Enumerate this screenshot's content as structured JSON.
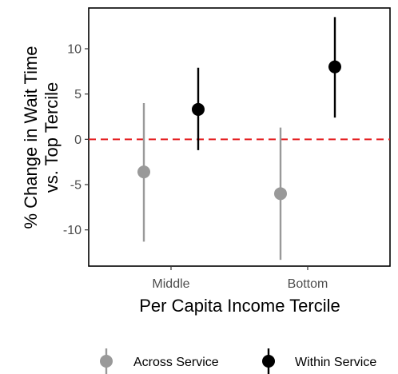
{
  "chart_data": {
    "type": "scatter",
    "subtype": "point-range",
    "title": "",
    "xlabel": "Per Capita Income Tercile",
    "ylabel_line1": "% Change in Wait Time",
    "ylabel_line2": "vs. Top Tercile",
    "categories": [
      "Middle",
      "Bottom"
    ],
    "ylim": [
      -14,
      14.5
    ],
    "yticks": [
      10,
      5,
      0,
      -5,
      -10
    ],
    "ytick_labels": [
      "10",
      "5",
      "0",
      "-5",
      "-10"
    ],
    "reference_line": {
      "y": 0,
      "style": "dashed",
      "color": "#e41a1c"
    },
    "series": [
      {
        "name": "Across Service",
        "color": "#999999",
        "points": [
          {
            "category": "Middle",
            "value": -3.6,
            "low": -11.3,
            "high": 4.0
          },
          {
            "category": "Bottom",
            "value": -6.0,
            "low": -13.3,
            "high": 1.3
          }
        ]
      },
      {
        "name": "Within Service",
        "color": "#000000",
        "points": [
          {
            "category": "Middle",
            "value": 3.3,
            "low": -1.2,
            "high": 7.9
          },
          {
            "category": "Bottom",
            "value": 8.0,
            "low": 2.4,
            "high": 13.5
          }
        ]
      }
    ],
    "grid": false,
    "legend_position": "bottom"
  }
}
